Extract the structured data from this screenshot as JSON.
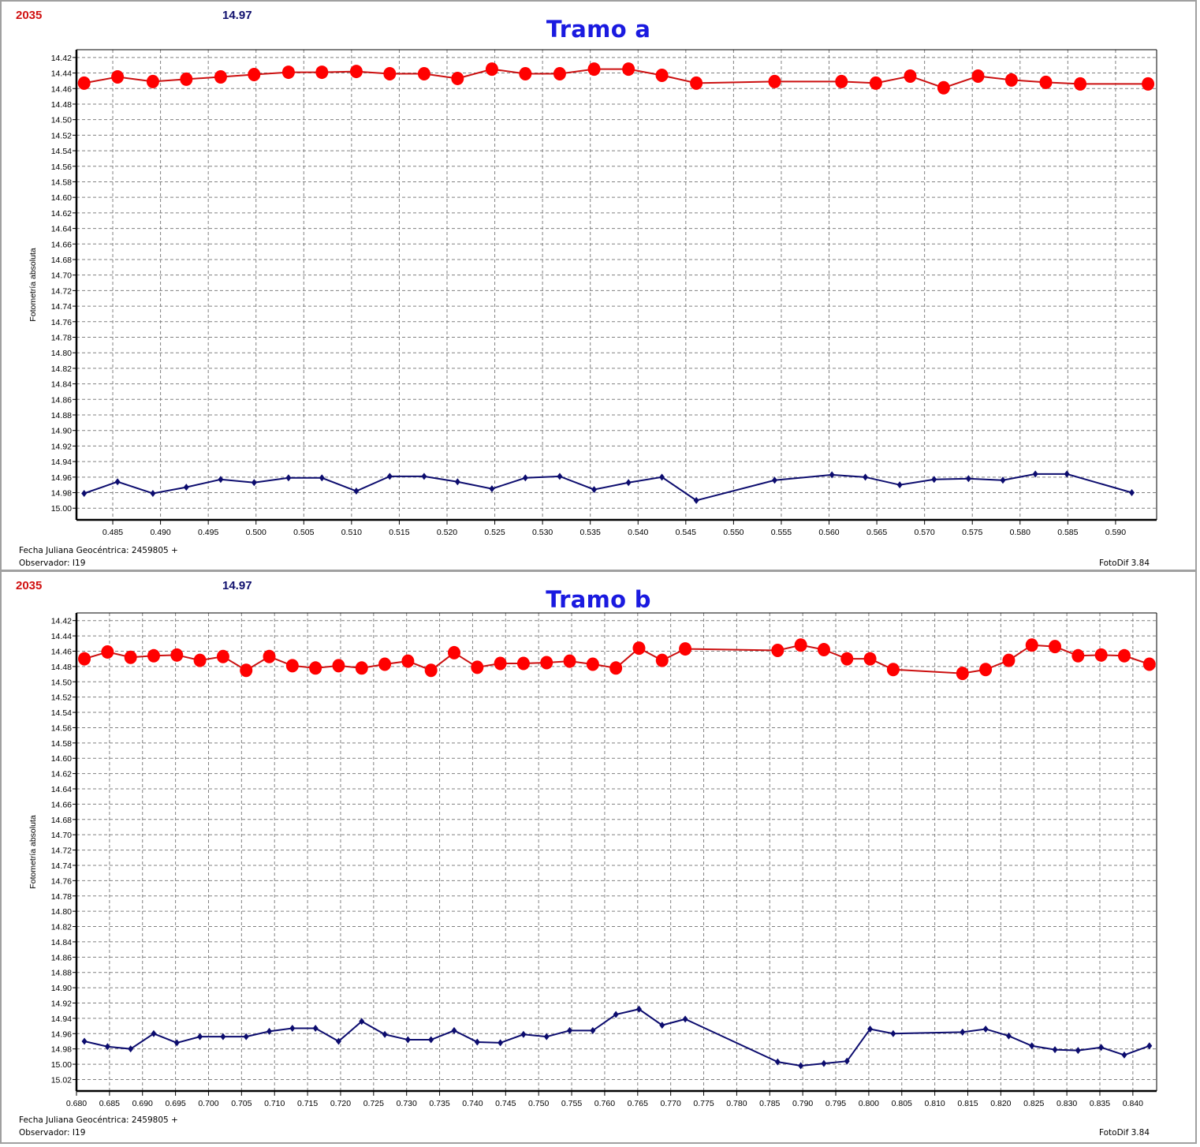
{
  "panels": [
    {
      "code": "2035",
      "reference_mag": "14.97",
      "title": "Tramo a",
      "ylabel": "Fotometría absoluta",
      "xlabel": "Fecha Juliana Geocéntrica: 2459805 +",
      "observer": "Observador: I19",
      "software": "FotoDif 3.84"
    },
    {
      "code": "2035",
      "reference_mag": "14.97",
      "title": "Tramo b",
      "ylabel": "Fotometría absoluta",
      "xlabel": "Fecha Juliana Geocéntrica: 2459805 +",
      "observer": "Observador: I19",
      "software": "FotoDif 3.84"
    }
  ],
  "colors": {
    "target": "#ff0000",
    "target_line": "#cc1010",
    "comparison": "#0c0c6e",
    "grid": "#808080",
    "code_text": "#d01010",
    "ref_text": "#10106e",
    "title_text": "#1a1ae0"
  },
  "chart_data": [
    {
      "type": "line",
      "title": "Tramo a",
      "xlabel": "Fecha Juliana Geocéntrica: 2459805 +",
      "ylabel": "Fotometría absoluta",
      "y_inverted": true,
      "xlim": [
        0.4812,
        0.5943
      ],
      "ylim": [
        14.41,
        15.015
      ],
      "xticks": [
        0.485,
        0.49,
        0.495,
        0.5,
        0.505,
        0.51,
        0.515,
        0.52,
        0.525,
        0.53,
        0.535,
        0.54,
        0.545,
        0.55,
        0.555,
        0.56,
        0.565,
        0.57,
        0.575,
        0.58,
        0.585,
        0.59
      ],
      "yticks": [
        14.42,
        14.44,
        14.46,
        14.48,
        14.5,
        14.52,
        14.54,
        14.56,
        14.58,
        14.6,
        14.62,
        14.64,
        14.66,
        14.68,
        14.7,
        14.72,
        14.74,
        14.76,
        14.78,
        14.8,
        14.82,
        14.84,
        14.86,
        14.88,
        14.9,
        14.92,
        14.94,
        14.96,
        14.98,
        15.0
      ],
      "grid": true,
      "series": [
        {
          "name": "2035",
          "marker": "circle-large",
          "x": [
            0.482,
            0.4855,
            0.4892,
            0.4927,
            0.4963,
            0.4998,
            0.5034,
            0.5069,
            0.5105,
            0.514,
            0.5176,
            0.5211,
            0.5247,
            0.5282,
            0.5318,
            0.5354,
            0.539,
            0.5425,
            0.5461,
            0.5543,
            0.5613,
            0.5649,
            0.5685,
            0.572,
            0.5756,
            0.5791,
            0.5827,
            0.5863,
            0.5934
          ],
          "y": [
            14.453,
            14.445,
            14.451,
            14.448,
            14.445,
            14.442,
            14.439,
            14.439,
            14.438,
            14.441,
            14.441,
            14.447,
            14.435,
            14.441,
            14.441,
            14.435,
            14.435,
            14.443,
            14.453,
            14.451,
            14.451,
            14.453,
            14.444,
            14.459,
            14.444,
            14.449,
            14.452,
            14.454,
            14.454
          ]
        },
        {
          "name": "14.97",
          "marker": "diamond-small",
          "x": [
            0.482,
            0.4855,
            0.4892,
            0.4927,
            0.4963,
            0.4998,
            0.5034,
            0.5069,
            0.5105,
            0.514,
            0.5176,
            0.5211,
            0.5247,
            0.5282,
            0.5318,
            0.5354,
            0.539,
            0.5425,
            0.5461,
            0.5543,
            0.5603,
            0.5638,
            0.5674,
            0.571,
            0.5746,
            0.5782,
            0.5816,
            0.5849,
            0.5917
          ],
          "y": [
            14.981,
            14.966,
            14.981,
            14.973,
            14.963,
            14.967,
            14.961,
            14.961,
            14.978,
            14.959,
            14.959,
            14.966,
            14.975,
            14.961,
            14.959,
            14.976,
            14.967,
            14.96,
            14.99,
            14.964,
            14.957,
            14.96,
            14.97,
            14.963,
            14.962,
            14.964,
            14.956,
            14.956,
            14.98
          ]
        }
      ]
    },
    {
      "type": "line",
      "title": "Tramo b",
      "xlabel": "Fecha Juliana Geocéntrica: 2459805 +",
      "ylabel": "Fotometría absoluta",
      "y_inverted": true,
      "xlim": [
        0.68,
        0.8436
      ],
      "ylim": [
        14.41,
        15.035
      ],
      "xticks": [
        0.68,
        0.685,
        0.69,
        0.695,
        0.7,
        0.705,
        0.71,
        0.715,
        0.72,
        0.725,
        0.73,
        0.735,
        0.74,
        0.745,
        0.75,
        0.755,
        0.76,
        0.765,
        0.77,
        0.775,
        0.78,
        0.785,
        0.79,
        0.795,
        0.8,
        0.805,
        0.81,
        0.815,
        0.82,
        0.825,
        0.83,
        0.835,
        0.84
      ],
      "yticks": [
        14.42,
        14.44,
        14.46,
        14.48,
        14.5,
        14.52,
        14.54,
        14.56,
        14.58,
        14.6,
        14.62,
        14.64,
        14.66,
        14.68,
        14.7,
        14.72,
        14.74,
        14.76,
        14.78,
        14.8,
        14.82,
        14.84,
        14.86,
        14.88,
        14.9,
        14.92,
        14.94,
        14.96,
        14.98,
        15.0,
        15.02
      ],
      "grid": true,
      "series": [
        {
          "name": "2035",
          "marker": "circle-large",
          "x": [
            0.6812,
            0.6847,
            0.6882,
            0.6917,
            0.6952,
            0.6987,
            0.7022,
            0.7057,
            0.7092,
            0.7127,
            0.7162,
            0.7197,
            0.7232,
            0.7267,
            0.7302,
            0.7337,
            0.7372,
            0.7407,
            0.7442,
            0.7477,
            0.7512,
            0.7547,
            0.7582,
            0.7617,
            0.7652,
            0.7687,
            0.7722,
            0.7862,
            0.7897,
            0.7932,
            0.7967,
            0.8002,
            0.8037,
            0.8142,
            0.8177,
            0.8212,
            0.8247,
            0.8282,
            0.8317,
            0.8352,
            0.8387,
            0.8425
          ],
          "y": [
            14.47,
            14.461,
            14.468,
            14.466,
            14.465,
            14.472,
            14.467,
            14.485,
            14.467,
            14.479,
            14.482,
            14.479,
            14.482,
            14.477,
            14.473,
            14.485,
            14.462,
            14.481,
            14.476,
            14.476,
            14.475,
            14.473,
            14.477,
            14.482,
            14.456,
            14.472,
            14.457,
            14.459,
            14.452,
            14.458,
            14.47,
            14.47,
            14.484,
            14.489,
            14.484,
            14.472,
            14.452,
            14.454,
            14.466,
            14.465,
            14.466,
            14.477
          ]
        },
        {
          "name": "14.97",
          "marker": "diamond-small",
          "x": [
            0.6812,
            0.6847,
            0.6882,
            0.6917,
            0.6952,
            0.6987,
            0.7022,
            0.7057,
            0.7092,
            0.7127,
            0.7162,
            0.7197,
            0.7232,
            0.7267,
            0.7302,
            0.7337,
            0.7372,
            0.7407,
            0.7442,
            0.7477,
            0.7512,
            0.7547,
            0.7582,
            0.7617,
            0.7652,
            0.7687,
            0.7722,
            0.7862,
            0.7897,
            0.7932,
            0.7967,
            0.8002,
            0.8037,
            0.8142,
            0.8177,
            0.8212,
            0.8247,
            0.8282,
            0.8317,
            0.8352,
            0.8387,
            0.8425
          ],
          "y": [
            14.97,
            14.977,
            14.98,
            14.96,
            14.972,
            14.964,
            14.964,
            14.964,
            14.957,
            14.953,
            14.953,
            14.97,
            14.944,
            14.961,
            14.968,
            14.968,
            14.956,
            14.971,
            14.972,
            14.961,
            14.964,
            14.956,
            14.956,
            14.935,
            14.928,
            14.949,
            14.941,
            14.997,
            15.002,
            14.999,
            14.996,
            14.954,
            14.96,
            14.958,
            14.954,
            14.963,
            14.976,
            14.981,
            14.982,
            14.978,
            14.988,
            14.976
          ]
        }
      ]
    }
  ]
}
